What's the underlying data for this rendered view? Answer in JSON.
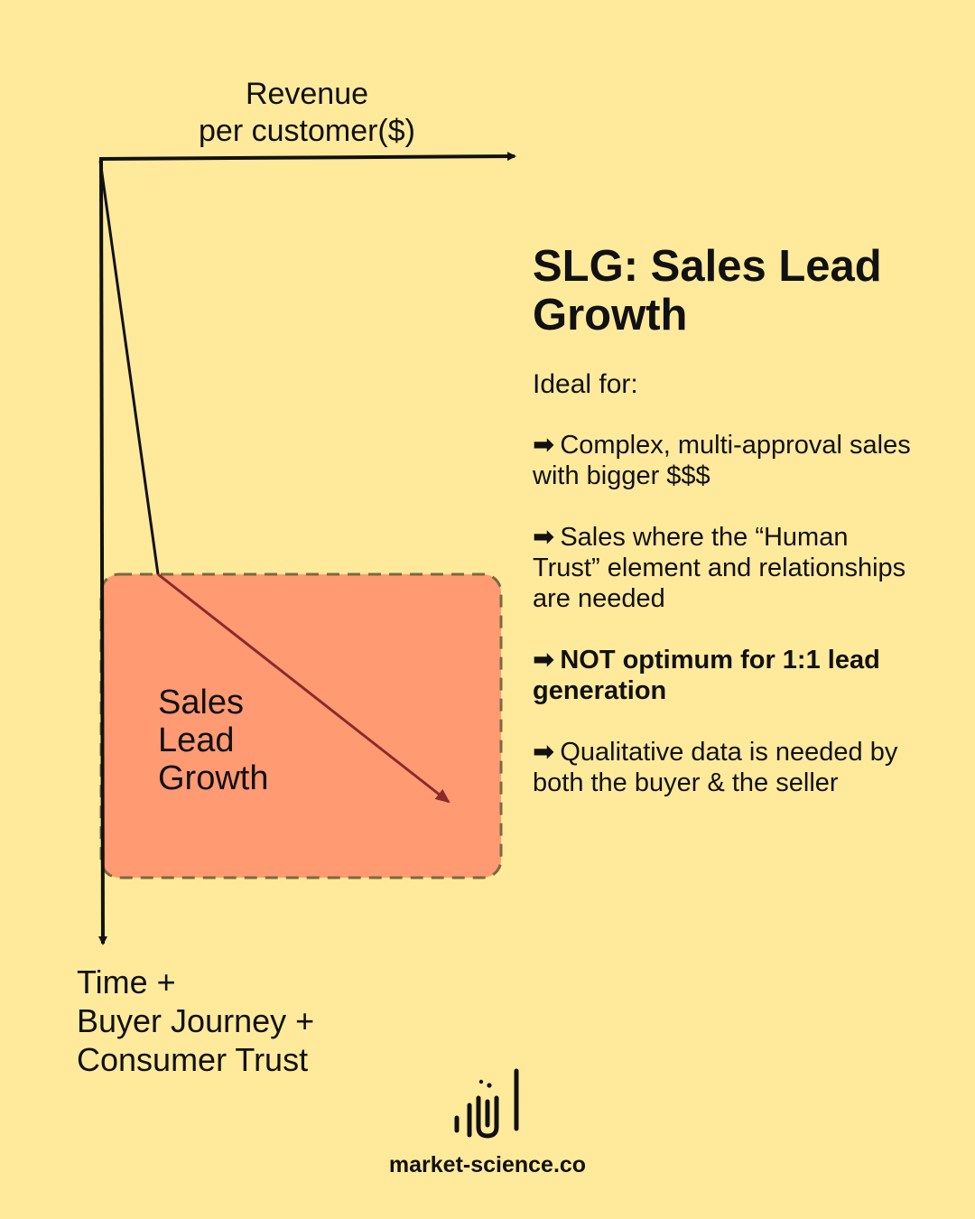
{
  "diagram": {
    "x_axis_label": "Revenue\nper customer($)",
    "y_axis_label": "Time +\nBuyer Journey +\nConsumer Trust",
    "region_label": "Sales\nLead\nGrowth",
    "colors": {
      "background": "#FFEA9C",
      "region_fill": "#FF9A73",
      "region_border": "#7A6A3E",
      "axis": "#111111",
      "arrow": "#8B2A2A"
    }
  },
  "panel": {
    "title": "SLG: Sales Lead Growth",
    "subtitle": "Ideal for:",
    "bullet_icon": "➡",
    "bullets": [
      {
        "text": "Complex, multi-approval sales with bigger $$$",
        "bold": false
      },
      {
        "text": "Sales where the “Human Trust” element and relationships are needed",
        "bold": false
      },
      {
        "text": "NOT optimum for 1:1 lead generation",
        "bold": true
      },
      {
        "text": "Qualitative data is needed by both the buyer & the seller",
        "bold": false
      }
    ]
  },
  "footer": {
    "logo_icon": "market-science-logo-icon",
    "domain": "market-science.co"
  }
}
